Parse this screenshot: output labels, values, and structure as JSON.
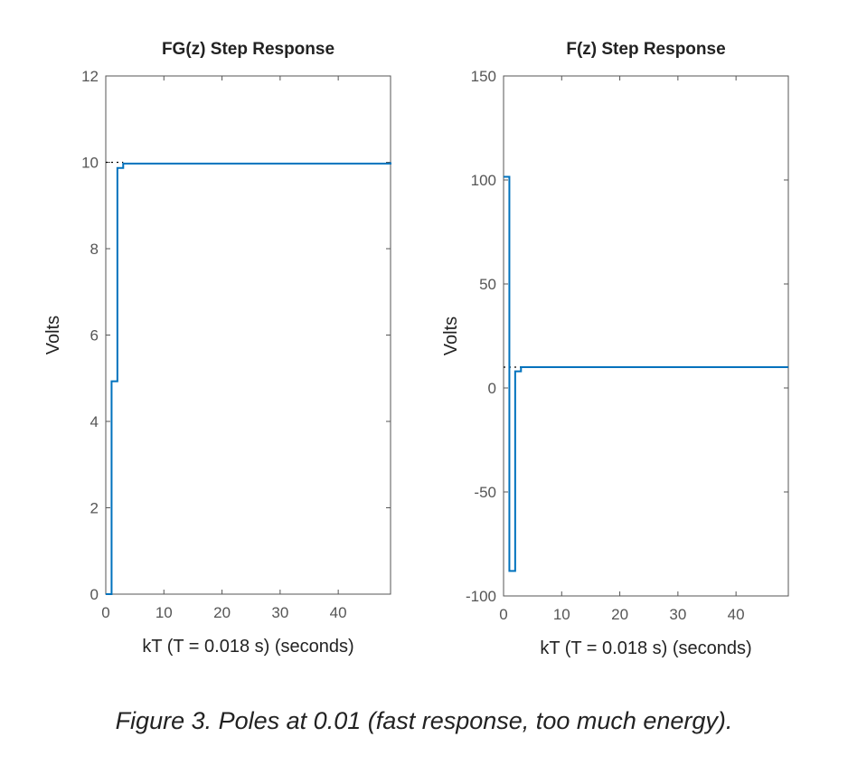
{
  "caption": "Figure 3. Poles at 0.01 (fast response, too much energy).",
  "colors": {
    "series": "#0072BD",
    "axis": "#555555",
    "steady_state": "#000000"
  },
  "chart_data": [
    {
      "type": "line",
      "step": true,
      "title": "FG(z) Step Response",
      "xlabel": "kT (T = 0.018 s) (seconds)",
      "ylabel": "Volts",
      "xlim": [
        0,
        49
      ],
      "ylim": [
        0,
        12
      ],
      "xticks": [
        0,
        10,
        20,
        30,
        40
      ],
      "yticks": [
        0,
        2,
        4,
        6,
        8,
        10,
        12
      ],
      "grid": false,
      "steady_state": 10,
      "x": [
        0,
        1,
        2,
        3,
        49
      ],
      "y": [
        0,
        4.93,
        9.87,
        9.97,
        10
      ]
    },
    {
      "type": "line",
      "step": true,
      "title": "F(z) Step Response",
      "xlabel": "kT (T = 0.018 s) (seconds)",
      "ylabel": "Volts",
      "xlim": [
        0,
        49
      ],
      "ylim": [
        -100,
        150
      ],
      "xticks": [
        0,
        10,
        20,
        30,
        40
      ],
      "yticks": [
        -100,
        -50,
        0,
        50,
        100,
        150
      ],
      "grid": false,
      "steady_state": 10,
      "x": [
        0,
        1,
        2,
        3,
        49
      ],
      "y": [
        101.5,
        -88,
        8,
        10,
        10
      ]
    }
  ]
}
